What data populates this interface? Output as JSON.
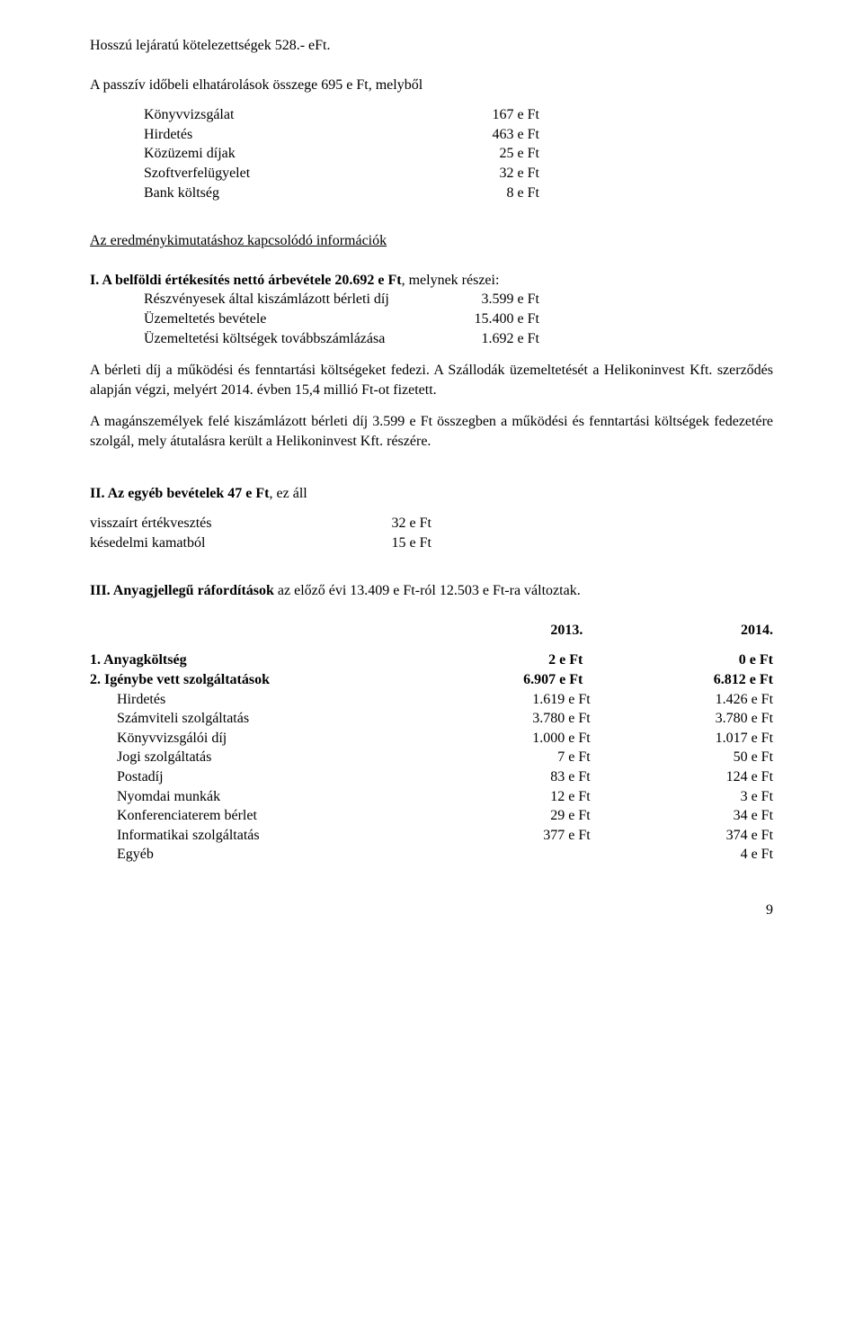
{
  "line1": "Hosszú lejáratú kötelezettségek 528.- eFt.",
  "line2": "A passzív időbeli elhatárolások összege 695 e Ft, melyből",
  "list1": [
    {
      "label": "Könyvvizsgálat",
      "value": "167 e Ft"
    },
    {
      "label": "Hirdetés",
      "value": "463 e Ft"
    },
    {
      "label": "Közüzemi díjak",
      "value": "25 e Ft"
    },
    {
      "label": "Szoftverfelügyelet",
      "value": "32 e Ft"
    },
    {
      "label": "Bank költség",
      "value": "8 e Ft"
    }
  ],
  "heading1": "Az eredménykimutatáshoz kapcsolódó információk",
  "sectionI_pre": "I. A belföldi értékesítés nettó árbevétele 20.692 e Ft",
  "sectionI_post": ", melynek részei:",
  "list2": [
    {
      "label": "Részvényesek által kiszámlázott  bérleti díj",
      "value": "3.599 e Ft"
    },
    {
      "label": "Üzemeltetés bevétele",
      "value": "15.400 e Ft"
    },
    {
      "label": "Üzemeltetési költségek továbbszámlázása",
      "value": "1.692 e Ft"
    }
  ],
  "para1": "A bérleti díj a működési és fenntartási költségeket fedezi. A Szállodák üzemeltetését a Helikoninvest Kft. szerződés alapján végzi, melyért 2014. évben 15,4 millió Ft-ot fizetett.",
  "para2": "A magánszemélyek felé kiszámlázott bérleti díj 3.599 e Ft összegben a működési és fenntartási költségek fedezetére szolgál, mely átutalásra került a Helikoninvest Kft. részére.",
  "sectionII_title": "II. Az egyéb bevételek 47 e Ft",
  "sectionII_suffix": ", ez áll",
  "list3": [
    {
      "label": "visszaírt értékvesztés",
      "value": "32 e Ft"
    },
    {
      "label": "késedelmi kamatból",
      "value": "15 e Ft"
    }
  ],
  "sectionIII_title": "III. Anyagjellegű ráfordítások",
  "sectionIII_suffix": " az előző évi 13.409 e Ft-ról 12.503 e Ft-ra változtak.",
  "table_head": {
    "c1": "",
    "c2": "2013.",
    "c3": "2014."
  },
  "table_rows": [
    {
      "c1": "1. Anyagköltség",
      "c2": "2 e Ft",
      "c3": "0 e Ft",
      "bold": true,
      "indent": false
    },
    {
      "c1": "2. Igénybe vett szolgáltatások",
      "c2": "6.907 e Ft",
      "c3": "6.812 e Ft",
      "bold": true,
      "indent": false
    },
    {
      "c1": "Hirdetés",
      "c2": "1.619 e Ft",
      "c3": "1.426 e Ft",
      "bold": false,
      "indent": true
    },
    {
      "c1": "Számviteli szolgáltatás",
      "c2": "3.780 e Ft",
      "c3": "3.780 e Ft",
      "bold": false,
      "indent": true
    },
    {
      "c1": "Könyvvizsgálói díj",
      "c2": "1.000 e Ft",
      "c3": "1.017 e Ft",
      "bold": false,
      "indent": true
    },
    {
      "c1": "Jogi szolgáltatás",
      "c2": "7 e Ft",
      "c3": "50 e Ft",
      "bold": false,
      "indent": true
    },
    {
      "c1": "Postadíj",
      "c2": "83 e Ft",
      "c3": "124 e Ft",
      "bold": false,
      "indent": true
    },
    {
      "c1": "Nyomdai munkák",
      "c2": "12 e Ft",
      "c3": "3 e Ft",
      "bold": false,
      "indent": true
    },
    {
      "c1": "Konferenciaterem bérlet",
      "c2": "29 e Ft",
      "c3": "34 e Ft",
      "bold": false,
      "indent": true
    },
    {
      "c1": "Informatikai szolgáltatás",
      "c2": "377 e Ft",
      "c3": "374 e Ft",
      "bold": false,
      "indent": true
    },
    {
      "c1": "Egyéb",
      "c2": "",
      "c3": "4 e Ft",
      "bold": false,
      "indent": true
    }
  ],
  "pagenum": "9"
}
